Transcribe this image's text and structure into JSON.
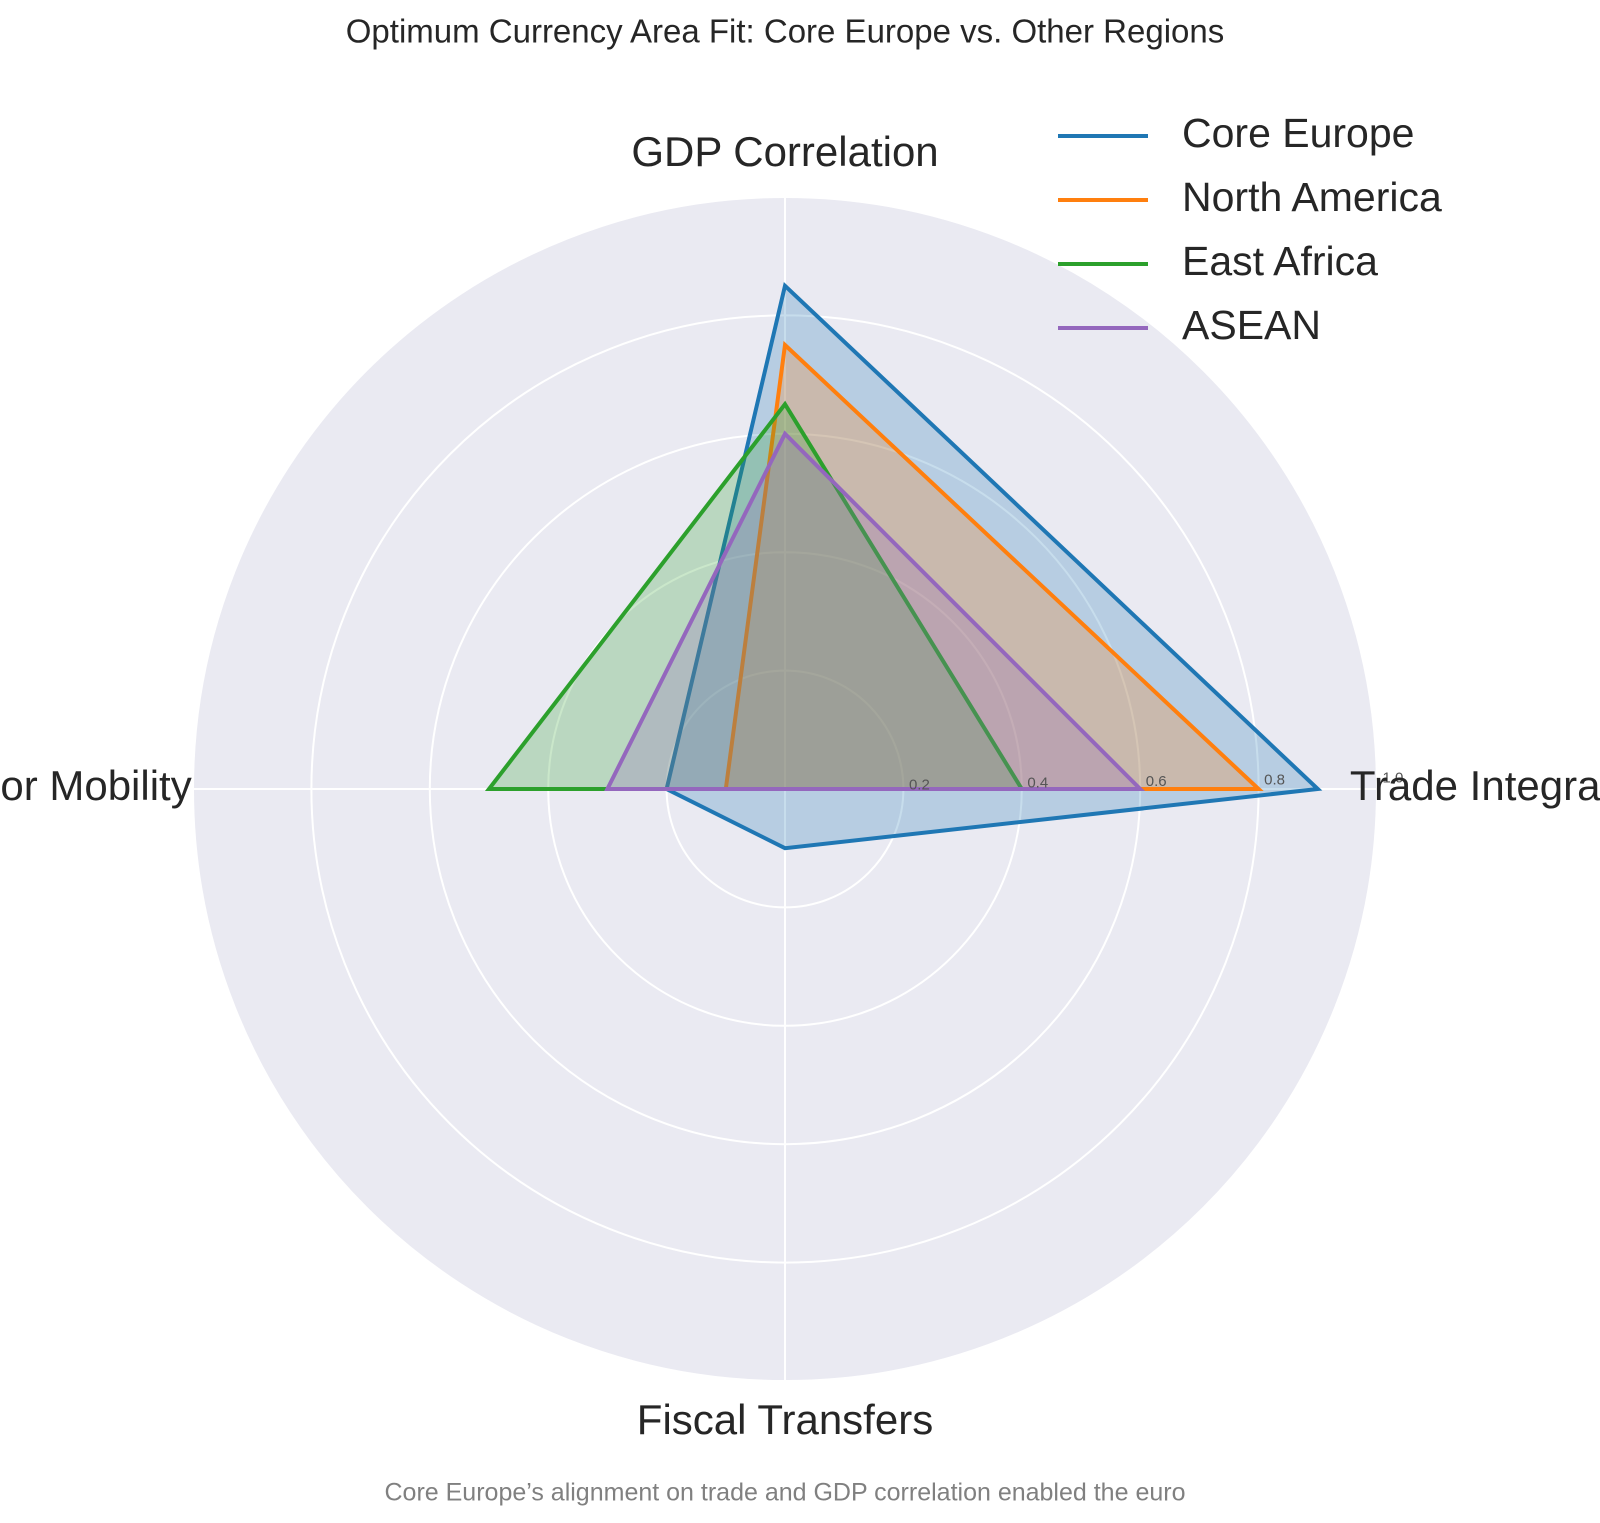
{
  "chart_data": {
    "type": "radar",
    "title": "Optimum Currency Area Fit: Core Europe vs. Other Regions",
    "subtitle": "Core Europe’s alignment on trade and GDP correlation enabled the euro",
    "categories": [
      "GDP Correlation",
      "Trade Integration",
      "Fiscal Transfers",
      "Labor Mobility"
    ],
    "series": [
      {
        "name": "Core Europe",
        "color": "#1f77b4",
        "values": [
          0.85,
          0.9,
          0.1,
          0.2
        ]
      },
      {
        "name": "North America",
        "color": "#ff7f0e",
        "values": [
          0.75,
          0.8,
          0,
          0.1
        ]
      },
      {
        "name": "East Africa",
        "color": "#2ca02c",
        "values": [
          0.65,
          0.4,
          0,
          0.5
        ]
      },
      {
        "name": "ASEAN",
        "color": "#9467bd",
        "values": [
          0.6,
          0.6,
          0,
          0.3
        ]
      }
    ],
    "ylim": [
      0,
      1
    ],
    "yticks": [
      0.2,
      0.4,
      0.6,
      0.8,
      {
        "value": 1,
        "label": "1.0"
      }
    ],
    "grid": true,
    "legend": "upper right"
  }
}
